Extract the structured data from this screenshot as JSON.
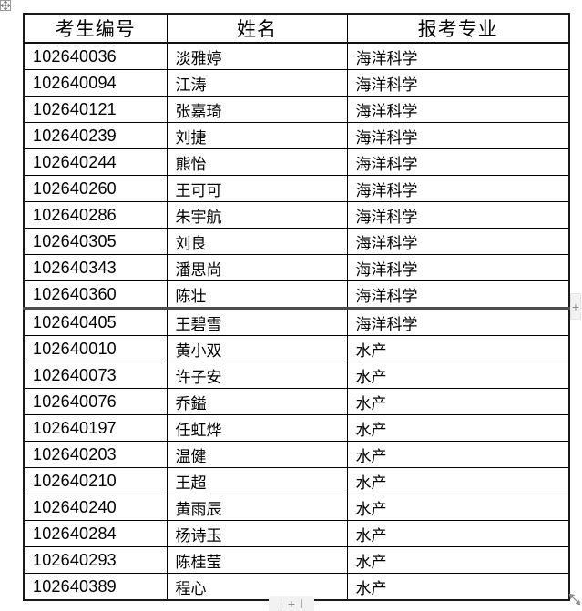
{
  "table": {
    "headers": [
      "考生编号",
      "姓名",
      "报考专业"
    ],
    "column_keys": [
      "candidate_no",
      "name",
      "major"
    ],
    "rows": [
      {
        "candidate_no": "102640036",
        "name": "淡雅婷",
        "major": "海洋科学"
      },
      {
        "candidate_no": "102640094",
        "name": "江涛",
        "major": "海洋科学"
      },
      {
        "candidate_no": "102640121",
        "name": "张嘉琦",
        "major": "海洋科学"
      },
      {
        "candidate_no": "102640239",
        "name": "刘捷",
        "major": "海洋科学"
      },
      {
        "candidate_no": "102640244",
        "name": "熊怡",
        "major": "海洋科学"
      },
      {
        "candidate_no": "102640260",
        "name": "王可可",
        "major": "海洋科学"
      },
      {
        "candidate_no": "102640286",
        "name": "朱宇航",
        "major": "海洋科学"
      },
      {
        "candidate_no": "102640305",
        "name": "刘良",
        "major": "海洋科学"
      },
      {
        "candidate_no": "102640343",
        "name": "潘思尚",
        "major": "海洋科学"
      },
      {
        "candidate_no": "102640360",
        "name": "陈壮",
        "major": "海洋科学"
      },
      {
        "candidate_no": "102640405",
        "name": "王碧雪",
        "major": "海洋科学",
        "heavy_top_border": true
      },
      {
        "candidate_no": "102640010",
        "name": "黄小双",
        "major": "水产"
      },
      {
        "candidate_no": "102640073",
        "name": "许子安",
        "major": "水产"
      },
      {
        "candidate_no": "102640076",
        "name": "乔鎰",
        "major": "水产"
      },
      {
        "candidate_no": "102640197",
        "name": "任虹烨",
        "major": "水产"
      },
      {
        "candidate_no": "102640203",
        "name": "温健",
        "major": "水产"
      },
      {
        "candidate_no": "102640210",
        "name": "王超",
        "major": "水产"
      },
      {
        "candidate_no": "102640240",
        "name": "黄雨辰",
        "major": "水产"
      },
      {
        "candidate_no": "102640284",
        "name": "杨诗玉",
        "major": "水产"
      },
      {
        "candidate_no": "102640293",
        "name": "陈桂莹",
        "major": "水产"
      },
      {
        "candidate_no": "102640389",
        "name": "程心",
        "major": "水产"
      }
    ]
  },
  "controls": {
    "insert_column_label": "+",
    "insert_row_label": "+"
  },
  "icons": {
    "move_handle": "four-way-arrow",
    "resize_handle": "diagonal-double-arrow"
  },
  "colors": {
    "grid_line": "#000000",
    "outer_border": "#1a1a1a",
    "section_divider": "#4d4d4d",
    "control_bg": "#f2f2f2",
    "control_glyph": "#8c8c8c"
  }
}
